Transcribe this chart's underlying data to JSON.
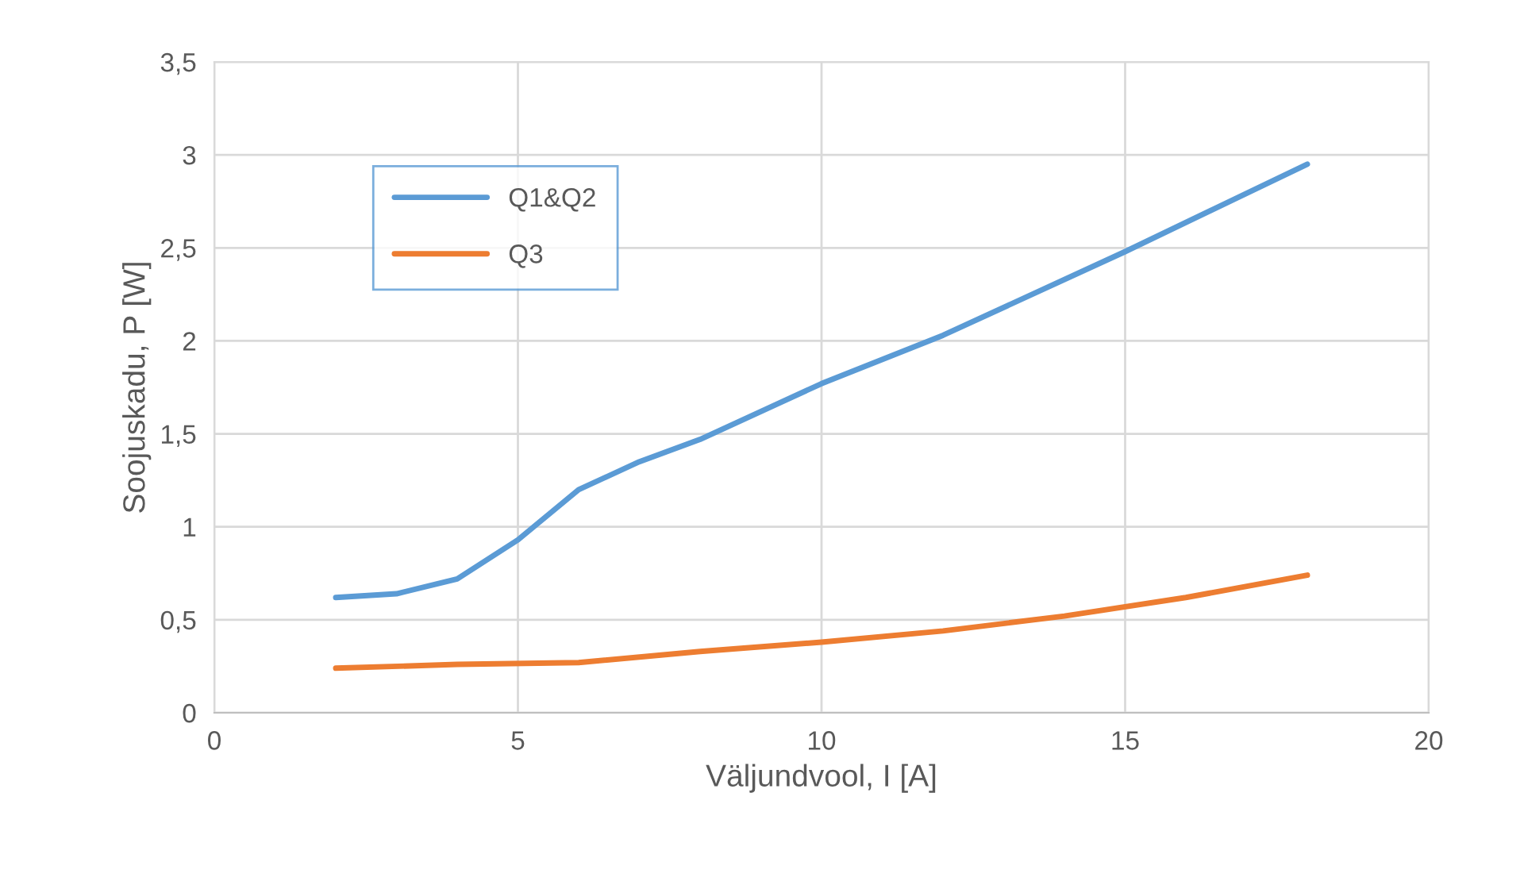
{
  "chart_data": {
    "type": "line",
    "xlabel": "Väljundvool, I [A]",
    "ylabel": "Soojuskadu, P [W]",
    "xlim": [
      0,
      20
    ],
    "xticks": [
      0,
      5,
      10,
      15,
      20
    ],
    "ylim": [
      0,
      3.5
    ],
    "yticks": [
      {
        "value": 0,
        "label": "0"
      },
      {
        "value": 0.5,
        "label": "0,5"
      },
      {
        "value": 1,
        "label": "1"
      },
      {
        "value": 1.5,
        "label": "1,5"
      },
      {
        "value": 2,
        "label": "2"
      },
      {
        "value": 2.5,
        "label": "2,5"
      },
      {
        "value": 3,
        "label": "3"
      },
      {
        "value": 3.5,
        "label": "3,5"
      }
    ],
    "grid": true,
    "legend": "top left",
    "marker": "none",
    "line_style": "solid",
    "series": [
      {
        "name": "Q1&Q2",
        "color": "#5b9bd5",
        "x": [
          2,
          3,
          4,
          5,
          6,
          7,
          8,
          10,
          12,
          15,
          18
        ],
        "values": [
          0.62,
          0.64,
          0.72,
          0.93,
          1.2,
          1.35,
          1.47,
          1.77,
          2.03,
          2.48,
          2.95
        ]
      },
      {
        "name": "Q3",
        "color": "#ed7d31",
        "x": [
          2,
          4,
          6,
          8,
          10,
          12,
          14,
          16,
          18
        ],
        "values": [
          0.24,
          0.26,
          0.27,
          0.33,
          0.38,
          0.44,
          0.52,
          0.62,
          0.74
        ]
      }
    ]
  }
}
